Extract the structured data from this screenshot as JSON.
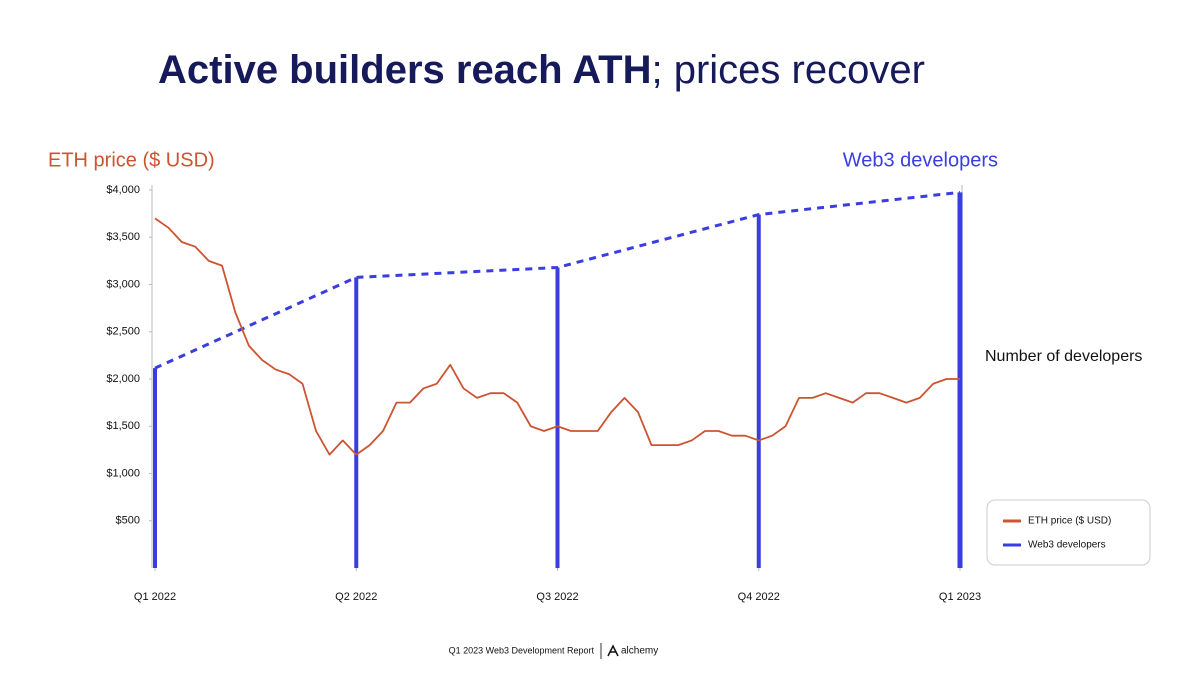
{
  "chart_data": {
    "type": "line",
    "title_bold": "Active builders reach ATH",
    "title_rest": "; prices recover",
    "y_label": "ETH price ($ USD)",
    "y2_label": "Web3 developers",
    "annotation": "Number of developers",
    "footer": "Q1 2023 Web3 Development Report",
    "brand": "alchemy",
    "xlim": [
      0,
      4
    ],
    "xticks": [
      {
        "value": 0,
        "label": "Q1 2022"
      },
      {
        "value": 1,
        "label": "Q2 2022"
      },
      {
        "value": 2,
        "label": "Q3 2022"
      },
      {
        "value": 3,
        "label": "Q4 2022"
      },
      {
        "value": 4,
        "label": "Q1 2023"
      }
    ],
    "ylim": [
      0,
      4000
    ],
    "yticks": [
      {
        "value": 500,
        "label": "$500"
      },
      {
        "value": 1000,
        "label": "$1,000"
      },
      {
        "value": 1500,
        "label": "$1,500"
      },
      {
        "value": 2000,
        "label": "$2,000"
      },
      {
        "value": 2500,
        "label": "$2,500"
      },
      {
        "value": 3000,
        "label": "$3,000"
      },
      {
        "value": 3500,
        "label": "$3,500"
      },
      {
        "value": 4000,
        "label": "$4,000"
      }
    ],
    "legend": "lower right",
    "series": [
      {
        "name": "ETH price ($ USD)",
        "color": "#cc5430",
        "style": "line",
        "x": [
          0,
          0.067,
          0.133,
          0.2,
          0.267,
          0.333,
          0.4,
          0.467,
          0.533,
          0.6,
          0.667,
          0.733,
          0.8,
          0.867,
          0.933,
          1,
          1.067,
          1.133,
          1.2,
          1.267,
          1.333,
          1.4,
          1.467,
          1.533,
          1.6,
          1.667,
          1.733,
          1.8,
          1.867,
          1.933,
          2,
          2.067,
          2.133,
          2.2,
          2.267,
          2.333,
          2.4,
          2.467,
          2.533,
          2.6,
          2.667,
          2.733,
          2.8,
          2.867,
          2.933,
          3,
          3.067,
          3.133,
          3.2,
          3.267,
          3.333,
          3.4,
          3.467,
          3.533,
          3.6,
          3.667,
          3.733,
          3.8,
          3.867,
          3.933,
          4
        ],
        "values": [
          3700,
          3600,
          3450,
          3400,
          3250,
          3200,
          2700,
          2350,
          2200,
          2100,
          2050,
          1950,
          1450,
          1200,
          1350,
          1200,
          1300,
          1450,
          1750,
          1750,
          1900,
          1950,
          2150,
          1900,
          1800,
          1850,
          1850,
          1750,
          1500,
          1450,
          1500,
          1450,
          1450,
          1450,
          1650,
          1800,
          1650,
          1300,
          1300,
          1300,
          1350,
          1450,
          1450,
          1400,
          1400,
          1350,
          1400,
          1500,
          1800,
          1800,
          1850,
          1800,
          1750,
          1850,
          1850,
          1800,
          1750,
          1800,
          1950,
          2000,
          2000
        ]
      },
      {
        "name": "Web3 developers",
        "color": "#3a3ee0",
        "style": "bars-dashed",
        "x": [
          0,
          1,
          2,
          3,
          4
        ],
        "values": [
          2115,
          3075,
          3180,
          3740,
          3975
        ]
      }
    ]
  }
}
